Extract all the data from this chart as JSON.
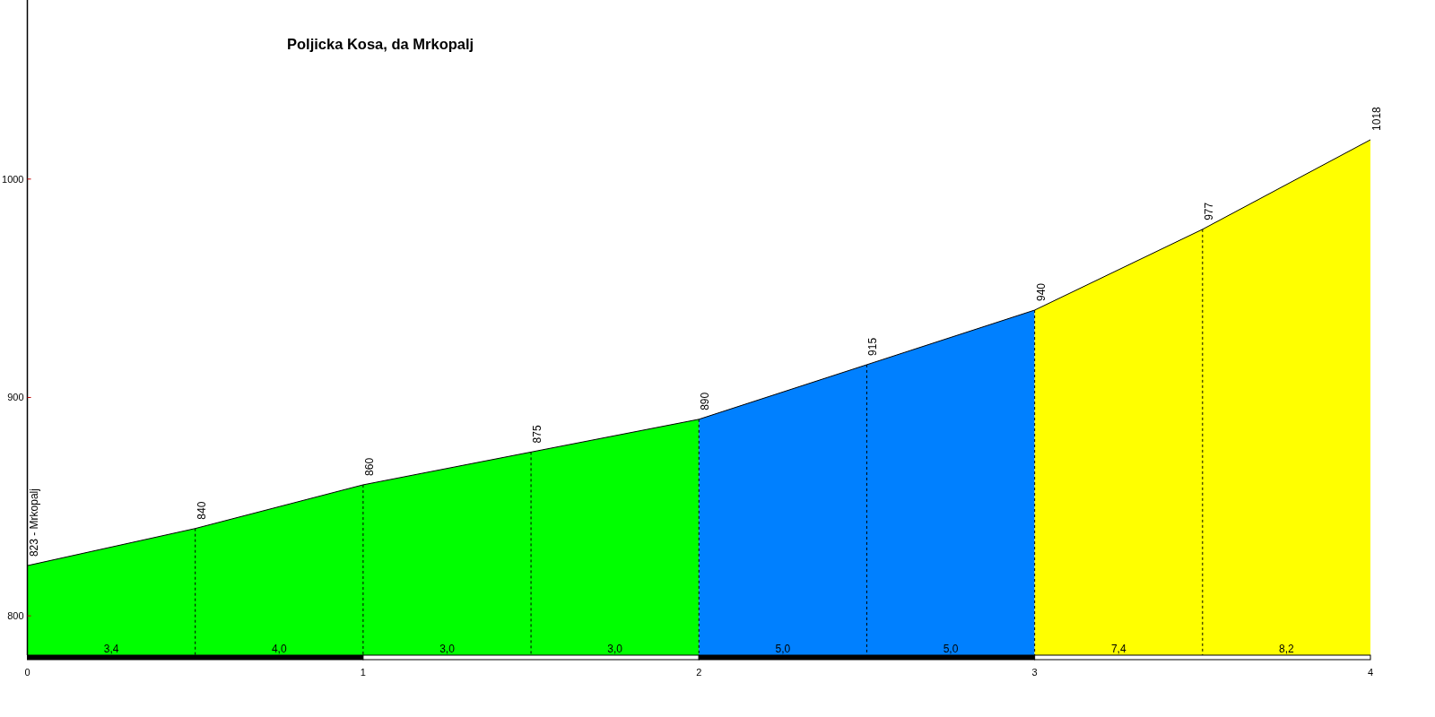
{
  "chart_data": {
    "type": "area",
    "title": "Poljicka Kosa, da Mrkopalj",
    "series": [
      {
        "color": "#00ff00",
        "x": [
          0,
          0.5,
          1,
          1.5,
          2
        ],
        "values": [
          823,
          840,
          860,
          875,
          890
        ],
        "value_labels": [
          "823 - Mrkopalj",
          "840",
          "860",
          "875",
          "890"
        ]
      },
      {
        "color": "#0080ff",
        "x": [
          2,
          2.5,
          3
        ],
        "values": [
          890,
          915,
          940
        ],
        "value_labels": [
          null,
          "915",
          "940"
        ]
      },
      {
        "color": "#ffff00",
        "x": [
          3,
          3.5,
          4
        ],
        "values": [
          940,
          977,
          1018
        ],
        "value_labels": [
          null,
          "977",
          "1018"
        ]
      }
    ],
    "xlim": [
      0,
      4
    ],
    "xticks": [
      0,
      1,
      2,
      3,
      4
    ],
    "ylim": [
      782,
      1082
    ],
    "yticks": [
      800,
      900,
      1000
    ],
    "ref_lines": [
      {
        "axis": "x",
        "value": 0.5,
        "color": "#000000",
        "line_style": "dashed"
      },
      {
        "axis": "x",
        "value": 1,
        "color": "#000000",
        "line_style": "dashed"
      },
      {
        "axis": "x",
        "value": 1.5,
        "color": "#000000",
        "line_style": "dashed"
      },
      {
        "axis": "x",
        "value": 2,
        "color": "#000000",
        "line_style": "dashed"
      },
      {
        "axis": "x",
        "value": 2.5,
        "color": "#000000",
        "line_style": "dashed"
      },
      {
        "axis": "x",
        "value": 3,
        "color": "#000000",
        "line_style": "dashed"
      },
      {
        "axis": "x",
        "value": 3.5,
        "color": "#000000",
        "line_style": "dashed"
      }
    ],
    "annotations": [
      "3,4",
      "4,0",
      "3,0",
      "3,0",
      "5,0",
      "5,0",
      "7,4",
      "8,2"
    ]
  }
}
